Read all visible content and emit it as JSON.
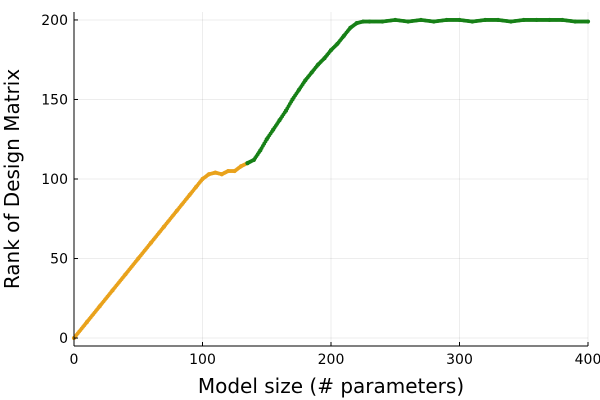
{
  "chart_data": {
    "type": "scatter",
    "title": "",
    "xlabel": "Model size (# parameters)",
    "ylabel": "Rank of Design Matrix",
    "xlim": [
      0,
      400
    ],
    "ylim": [
      -5,
      205
    ],
    "xticks": [
      0,
      100,
      200,
      300,
      400
    ],
    "yticks": [
      0,
      50,
      100,
      150,
      200
    ],
    "xtick_labels": [
      "0",
      "100",
      "200",
      "300",
      "400"
    ],
    "ytick_labels": [
      "0",
      "50",
      "100",
      "150",
      "200"
    ],
    "grid": true,
    "legend": "none",
    "series": [
      {
        "color": "#e9a21c",
        "x": [
          0,
          10,
          20,
          30,
          40,
          50,
          60,
          70,
          80,
          90,
          95,
          100,
          105,
          110,
          115,
          120,
          125,
          130,
          135
        ],
        "y": [
          0,
          10,
          20,
          30,
          40,
          50,
          60,
          70,
          80,
          90,
          95,
          100,
          103,
          104,
          103,
          105,
          105,
          108,
          110
        ]
      },
      {
        "color": "#178017",
        "x": [
          135,
          140,
          145,
          150,
          155,
          160,
          165,
          170,
          175,
          180,
          185,
          190,
          195,
          200,
          205,
          210,
          215,
          220,
          225,
          230,
          240,
          250,
          260,
          270,
          280,
          290,
          300,
          310,
          320,
          330,
          340,
          350,
          360,
          370,
          380,
          390,
          400
        ],
        "y": [
          110,
          112,
          118,
          125,
          131,
          137,
          143,
          150,
          156,
          162,
          167,
          172,
          176,
          181,
          185,
          190,
          195,
          198,
          199,
          199,
          199,
          200,
          199,
          200,
          199,
          200,
          200,
          199,
          200,
          200,
          199,
          200,
          200,
          200,
          200,
          199,
          199
        ]
      }
    ]
  }
}
